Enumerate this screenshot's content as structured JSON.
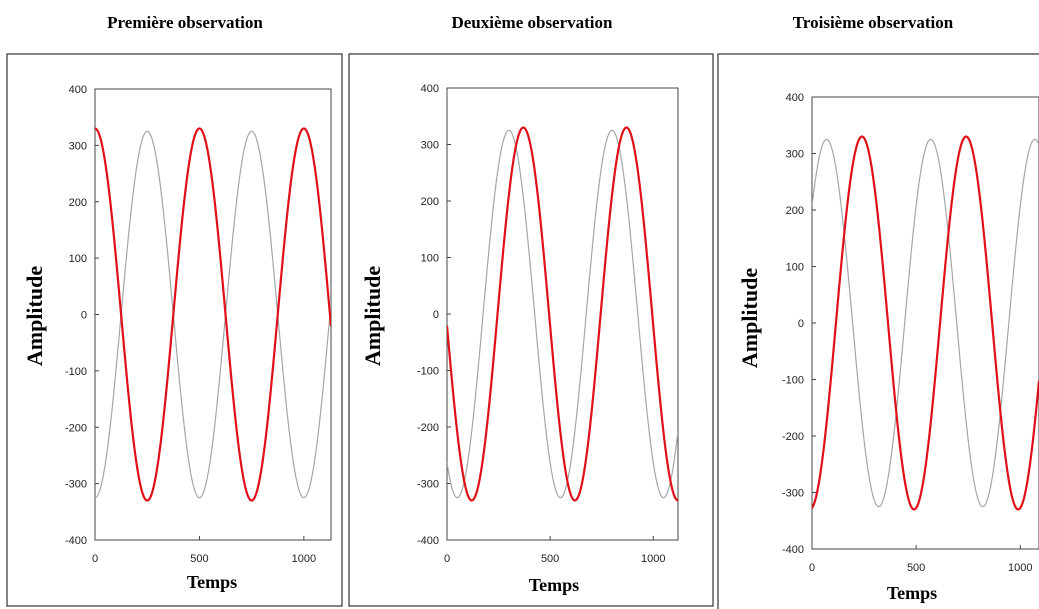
{
  "chart_data": [
    {
      "type": "line",
      "title": "Première observation",
      "xlabel": "Temps",
      "ylabel": "Amplitude",
      "xlim": [
        0,
        1130
      ],
      "ylim": [
        -400,
        400
      ],
      "x_ticks": [
        0,
        500,
        1000
      ],
      "y_ticks": [
        -400,
        -300,
        -200,
        -100,
        0,
        100,
        200,
        300,
        400
      ],
      "grid": false,
      "series": [
        {
          "color": "#a6a6a6",
          "amplitude": 325,
          "period": 500,
          "x_of_first_peak": 250,
          "x": [
            0,
            125,
            250,
            375,
            500,
            625,
            750,
            875,
            1000,
            1125
          ],
          "y": [
            -325,
            0,
            325,
            0,
            -325,
            0,
            325,
            0,
            -325,
            0
          ]
        },
        {
          "color": "#e0101a",
          "amplitude": 330,
          "period": 500,
          "x_of_first_peak": 0,
          "x": [
            0,
            125,
            250,
            375,
            500,
            625,
            750,
            875,
            1000,
            1125
          ],
          "y": [
            330,
            0,
            -330,
            0,
            330,
            0,
            -330,
            0,
            330,
            0
          ]
        }
      ]
    },
    {
      "type": "line",
      "title": "Deuxième observation",
      "xlabel": "Temps",
      "ylabel": "Amplitude",
      "xlim": [
        0,
        1120
      ],
      "ylim": [
        -400,
        400
      ],
      "x_ticks": [
        0,
        500,
        1000
      ],
      "y_ticks": [
        -400,
        -300,
        -200,
        -100,
        0,
        100,
        200,
        300,
        400
      ],
      "grid": false,
      "series": [
        {
          "color": "#a6a6a6",
          "amplitude": 325,
          "period": 500,
          "x_of_first_peak": 300,
          "x": [
            50,
            175,
            300,
            425,
            550,
            675,
            800,
            925,
            1050
          ],
          "y": [
            -325,
            0,
            325,
            0,
            -325,
            0,
            325,
            0,
            -325
          ]
        },
        {
          "color": "#e0101a",
          "amplitude": 330,
          "period": 500,
          "x_of_first_peak": 370,
          "x": [
            120,
            245,
            370,
            495,
            620,
            745,
            870,
            995,
            1120
          ],
          "y": [
            -330,
            0,
            330,
            0,
            -330,
            0,
            330,
            0,
            -330
          ]
        }
      ]
    },
    {
      "type": "line",
      "title": "Troisième observation",
      "xlabel": "Temps",
      "ylabel": "Amplitude",
      "xlim": [
        0,
        1090
      ],
      "ylim": [
        -400,
        400
      ],
      "x_ticks": [
        0,
        500,
        1000
      ],
      "y_ticks": [
        -400,
        -300,
        -200,
        -100,
        0,
        100,
        200,
        300,
        400
      ],
      "grid": false,
      "series": [
        {
          "color": "#a6a6a6",
          "amplitude": 325,
          "period": 500,
          "x_of_first_peak": 70,
          "x": [
            70,
            195,
            320,
            445,
            570,
            695,
            820,
            945,
            1070
          ],
          "y": [
            325,
            0,
            -325,
            0,
            325,
            0,
            -325,
            0,
            325
          ]
        },
        {
          "color": "#e0101a",
          "amplitude": 330,
          "period": 500,
          "x_of_first_peak": 240,
          "x": [
            -10,
            115,
            240,
            365,
            490,
            615,
            740,
            865,
            990
          ],
          "y": [
            -330,
            0,
            330,
            0,
            -330,
            0,
            330,
            0,
            -330
          ]
        }
      ]
    }
  ]
}
